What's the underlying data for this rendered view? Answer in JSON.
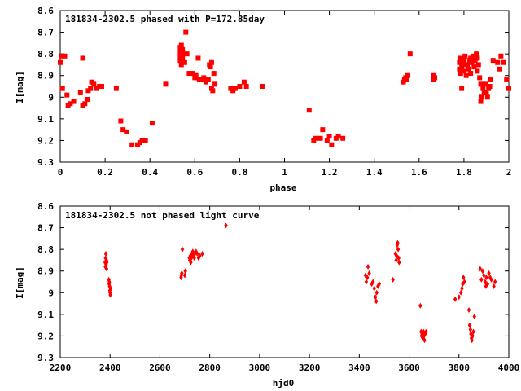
{
  "colors": {
    "points": "#ff0000",
    "axes": "#000000",
    "background": "#ffffff"
  },
  "chart_data": [
    {
      "type": "scatter",
      "title": "181834-2302.5 phased with P=172.85day",
      "xlabel": "phase",
      "ylabel": "I[mag]",
      "xlim": [
        0,
        2
      ],
      "ylim": [
        8.6,
        9.3
      ],
      "y_inverted": true,
      "grid": false,
      "legend": "none",
      "x_ticks": [
        "0",
        "0.2",
        "0.4",
        "0.6",
        "0.8",
        "1",
        "1.2",
        "1.4",
        "1.6",
        "1.8",
        "2"
      ],
      "y_ticks": [
        "8.6",
        "8.7",
        "8.8",
        "8.9",
        "9",
        "9.1",
        "9.2",
        "9.3"
      ],
      "x_tick_values": [
        0,
        0.2,
        0.4,
        0.6,
        0.8,
        1.0,
        1.2,
        1.4,
        1.6,
        1.8,
        2.0
      ],
      "y_tick_values": [
        8.6,
        8.7,
        8.8,
        8.9,
        9.0,
        9.1,
        9.2,
        9.3
      ],
      "series": [
        {
          "marker": "square",
          "points": [
            [
              0.0,
              8.84
            ],
            [
              0.005,
              8.81
            ],
            [
              0.01,
              8.96
            ],
            [
              0.02,
              8.81
            ],
            [
              0.03,
              8.99
            ],
            [
              0.035,
              9.04
            ],
            [
              0.045,
              9.03
            ],
            [
              0.06,
              9.02
            ],
            [
              0.09,
              8.98
            ],
            [
              0.1,
              8.82
            ],
            [
              0.1,
              9.04
            ],
            [
              0.11,
              9.03
            ],
            [
              0.12,
              9.01
            ],
            [
              0.125,
              8.97
            ],
            [
              0.135,
              8.96
            ],
            [
              0.14,
              8.93
            ],
            [
              0.15,
              8.94
            ],
            [
              0.16,
              8.96
            ],
            [
              0.175,
              8.95
            ],
            [
              0.185,
              8.95
            ],
            [
              0.25,
              8.96
            ],
            [
              0.27,
              9.11
            ],
            [
              0.28,
              9.15
            ],
            [
              0.295,
              9.16
            ],
            [
              0.32,
              9.22
            ],
            [
              0.345,
              9.22
            ],
            [
              0.355,
              9.21
            ],
            [
              0.365,
              9.2
            ],
            [
              0.38,
              9.2
            ],
            [
              0.41,
              9.12
            ],
            [
              0.47,
              8.94
            ],
            [
              0.535,
              8.77
            ],
            [
              0.535,
              8.79
            ],
            [
              0.535,
              8.81
            ],
            [
              0.535,
              8.83
            ],
            [
              0.54,
              8.76
            ],
            [
              0.54,
              8.85
            ],
            [
              0.545,
              8.78
            ],
            [
              0.545,
              8.82
            ],
            [
              0.55,
              8.8
            ],
            [
              0.555,
              8.84
            ],
            [
              0.56,
              8.7
            ],
            [
              0.565,
              8.8
            ],
            [
              0.575,
              8.89
            ],
            [
              0.59,
              8.89
            ],
            [
              0.6,
              8.91
            ],
            [
              0.605,
              8.9
            ],
            [
              0.615,
              8.82
            ],
            [
              0.62,
              8.92
            ],
            [
              0.63,
              8.92
            ],
            [
              0.64,
              8.91
            ],
            [
              0.65,
              8.93
            ],
            [
              0.66,
              8.92
            ],
            [
              0.665,
              8.85
            ],
            [
              0.67,
              8.86
            ],
            [
              0.675,
              8.84
            ],
            [
              0.675,
              8.96
            ],
            [
              0.68,
              8.97
            ],
            [
              0.685,
              8.89
            ],
            [
              0.69,
              8.94
            ],
            [
              0.76,
              8.96
            ],
            [
              0.77,
              8.97
            ],
            [
              0.78,
              8.96
            ],
            [
              0.8,
              8.95
            ],
            [
              0.82,
              8.93
            ],
            [
              0.83,
              8.95
            ],
            [
              0.9,
              8.95
            ],
            [
              1.11,
              9.06
            ],
            [
              1.13,
              9.2
            ],
            [
              1.14,
              9.19
            ],
            [
              1.16,
              9.19
            ],
            [
              1.17,
              9.15
            ],
            [
              1.19,
              9.2
            ],
            [
              1.2,
              9.18
            ],
            [
              1.21,
              9.22
            ],
            [
              1.23,
              9.19
            ],
            [
              1.24,
              9.18
            ],
            [
              1.26,
              9.19
            ],
            [
              1.53,
              8.93
            ],
            [
              1.535,
              8.92
            ],
            [
              1.54,
              8.91
            ],
            [
              1.545,
              8.92
            ],
            [
              1.55,
              8.9
            ],
            [
              1.56,
              8.8
            ],
            [
              1.665,
              8.92
            ],
            [
              1.665,
              8.9
            ],
            [
              1.67,
              8.91
            ],
            [
              1.78,
              8.87
            ],
            [
              1.78,
              8.84
            ],
            [
              1.785,
              8.82
            ],
            [
              1.785,
              8.89
            ],
            [
              1.79,
              8.86
            ],
            [
              1.79,
              8.96
            ],
            [
              1.795,
              8.85
            ],
            [
              1.8,
              8.83
            ],
            [
              1.8,
              8.88
            ],
            [
              1.805,
              8.81
            ],
            [
              1.81,
              8.9
            ],
            [
              1.815,
              8.85
            ],
            [
              1.82,
              8.87
            ],
            [
              1.825,
              8.83
            ],
            [
              1.83,
              8.82
            ],
            [
              1.83,
              8.89
            ],
            [
              1.835,
              8.84
            ],
            [
              1.84,
              8.81
            ],
            [
              1.845,
              8.86
            ],
            [
              1.85,
              8.83
            ],
            [
              1.855,
              8.8
            ],
            [
              1.86,
              8.82
            ],
            [
              1.86,
              8.88
            ],
            [
              1.865,
              8.85
            ],
            [
              1.87,
              8.91
            ],
            [
              1.875,
              8.94
            ],
            [
              1.875,
              9.02
            ],
            [
              1.88,
              9.0
            ],
            [
              1.885,
              8.96
            ],
            [
              1.89,
              8.98
            ],
            [
              1.895,
              8.94
            ],
            [
              1.9,
              8.98
            ],
            [
              1.905,
              9.0
            ],
            [
              1.91,
              8.96
            ],
            [
              1.915,
              8.95
            ],
            [
              1.92,
              8.92
            ],
            [
              1.93,
              8.83
            ],
            [
              1.95,
              8.84
            ],
            [
              1.96,
              8.87
            ],
            [
              1.965,
              8.81
            ],
            [
              1.975,
              8.84
            ],
            [
              1.99,
              8.92
            ],
            [
              2.0,
              8.96
            ]
          ]
        }
      ]
    },
    {
      "type": "scatter",
      "title": "181834-2302.5 not phased light curve",
      "xlabel": "hjd0",
      "ylabel": "I[mag]",
      "xlim": [
        2200,
        4000
      ],
      "ylim": [
        8.6,
        9.3
      ],
      "y_inverted": true,
      "grid": false,
      "legend": "none",
      "x_ticks": [
        "2200",
        "2400",
        "2600",
        "2800",
        "3000",
        "3200",
        "3400",
        "3600",
        "3800",
        "4000"
      ],
      "y_ticks": [
        "8.6",
        "8.7",
        "8.8",
        "8.9",
        "9",
        "9.1",
        "9.2",
        "9.3"
      ],
      "x_tick_values": [
        2200,
        2400,
        2600,
        2800,
        3000,
        3200,
        3400,
        3600,
        3800,
        4000
      ],
      "y_tick_values": [
        8.6,
        8.7,
        8.8,
        8.9,
        9.0,
        9.1,
        9.2,
        9.3
      ],
      "series": [
        {
          "marker": "diamond",
          "points": [
            [
              2380,
              8.86
            ],
            [
              2381,
              8.88
            ],
            [
              2382,
              8.84
            ],
            [
              2383,
              8.82
            ],
            [
              2384,
              8.87
            ],
            [
              2385,
              8.85
            ],
            [
              2386,
              8.89
            ],
            [
              2387,
              8.86
            ],
            [
              2395,
              8.94
            ],
            [
              2396,
              8.96
            ],
            [
              2397,
              8.95
            ],
            [
              2398,
              8.97
            ],
            [
              2399,
              8.99
            ],
            [
              2400,
              9.0
            ],
            [
              2401,
              9.01
            ],
            [
              2402,
              8.98
            ],
            [
              2685,
              8.93
            ],
            [
              2686,
              8.92
            ],
            [
              2688,
              8.91
            ],
            [
              2690,
              8.8
            ],
            [
              2700,
              8.92
            ],
            [
              2702,
              8.9
            ],
            [
              2718,
              8.84
            ],
            [
              2720,
              8.85
            ],
            [
              2722,
              8.83
            ],
            [
              2724,
              8.86
            ],
            [
              2726,
              8.84
            ],
            [
              2728,
              8.82
            ],
            [
              2730,
              8.82
            ],
            [
              2732,
              8.81
            ],
            [
              2735,
              8.83
            ],
            [
              2738,
              8.84
            ],
            [
              2740,
              8.82
            ],
            [
              2745,
              8.81
            ],
            [
              2750,
              8.82
            ],
            [
              2755,
              8.84
            ],
            [
              2760,
              8.83
            ],
            [
              2770,
              8.82
            ],
            [
              2865,
              8.69
            ],
            [
              3425,
              8.92
            ],
            [
              3428,
              8.95
            ],
            [
              3432,
              8.93
            ],
            [
              3435,
              8.88
            ],
            [
              3440,
              8.91
            ],
            [
              3450,
              8.96
            ],
            [
              3455,
              8.95
            ],
            [
              3460,
              8.98
            ],
            [
              3465,
              9.02
            ],
            [
              3468,
              9.04
            ],
            [
              3470,
              9.0
            ],
            [
              3475,
              8.97
            ],
            [
              3480,
              8.96
            ],
            [
              3535,
              8.94
            ],
            [
              3545,
              8.82
            ],
            [
              3548,
              8.85
            ],
            [
              3550,
              8.83
            ],
            [
              3552,
              8.78
            ],
            [
              3554,
              8.77
            ],
            [
              3556,
              8.8
            ],
            [
              3558,
              8.84
            ],
            [
              3560,
              8.86
            ],
            [
              3645,
              9.06
            ],
            [
              3648,
              9.18
            ],
            [
              3650,
              9.2
            ],
            [
              3652,
              9.19
            ],
            [
              3655,
              9.21
            ],
            [
              3658,
              9.18
            ],
            [
              3660,
              9.2
            ],
            [
              3662,
              9.22
            ],
            [
              3665,
              9.19
            ],
            [
              3668,
              9.18
            ],
            [
              3785,
              9.03
            ],
            [
              3800,
              9.02
            ],
            [
              3808,
              9.0
            ],
            [
              3812,
              8.98
            ],
            [
              3815,
              8.96
            ],
            [
              3818,
              8.93
            ],
            [
              3822,
              8.95
            ],
            [
              3840,
              9.08
            ],
            [
              3843,
              9.15
            ],
            [
              3846,
              9.17
            ],
            [
              3848,
              9.19
            ],
            [
              3850,
              9.21
            ],
            [
              3852,
              9.22
            ],
            [
              3855,
              9.2
            ],
            [
              3858,
              9.18
            ],
            [
              3862,
              9.11
            ],
            [
              3885,
              8.89
            ],
            [
              3890,
              8.94
            ],
            [
              3895,
              8.9
            ],
            [
              3900,
              8.92
            ],
            [
              3905,
              8.95
            ],
            [
              3908,
              8.97
            ],
            [
              3910,
              8.93
            ],
            [
              3915,
              8.96
            ],
            [
              3920,
              8.91
            ],
            [
              3925,
              8.93
            ],
            [
              3930,
              8.94
            ],
            [
              3940,
              8.97
            ],
            [
              3945,
              8.95
            ]
          ]
        }
      ]
    }
  ]
}
